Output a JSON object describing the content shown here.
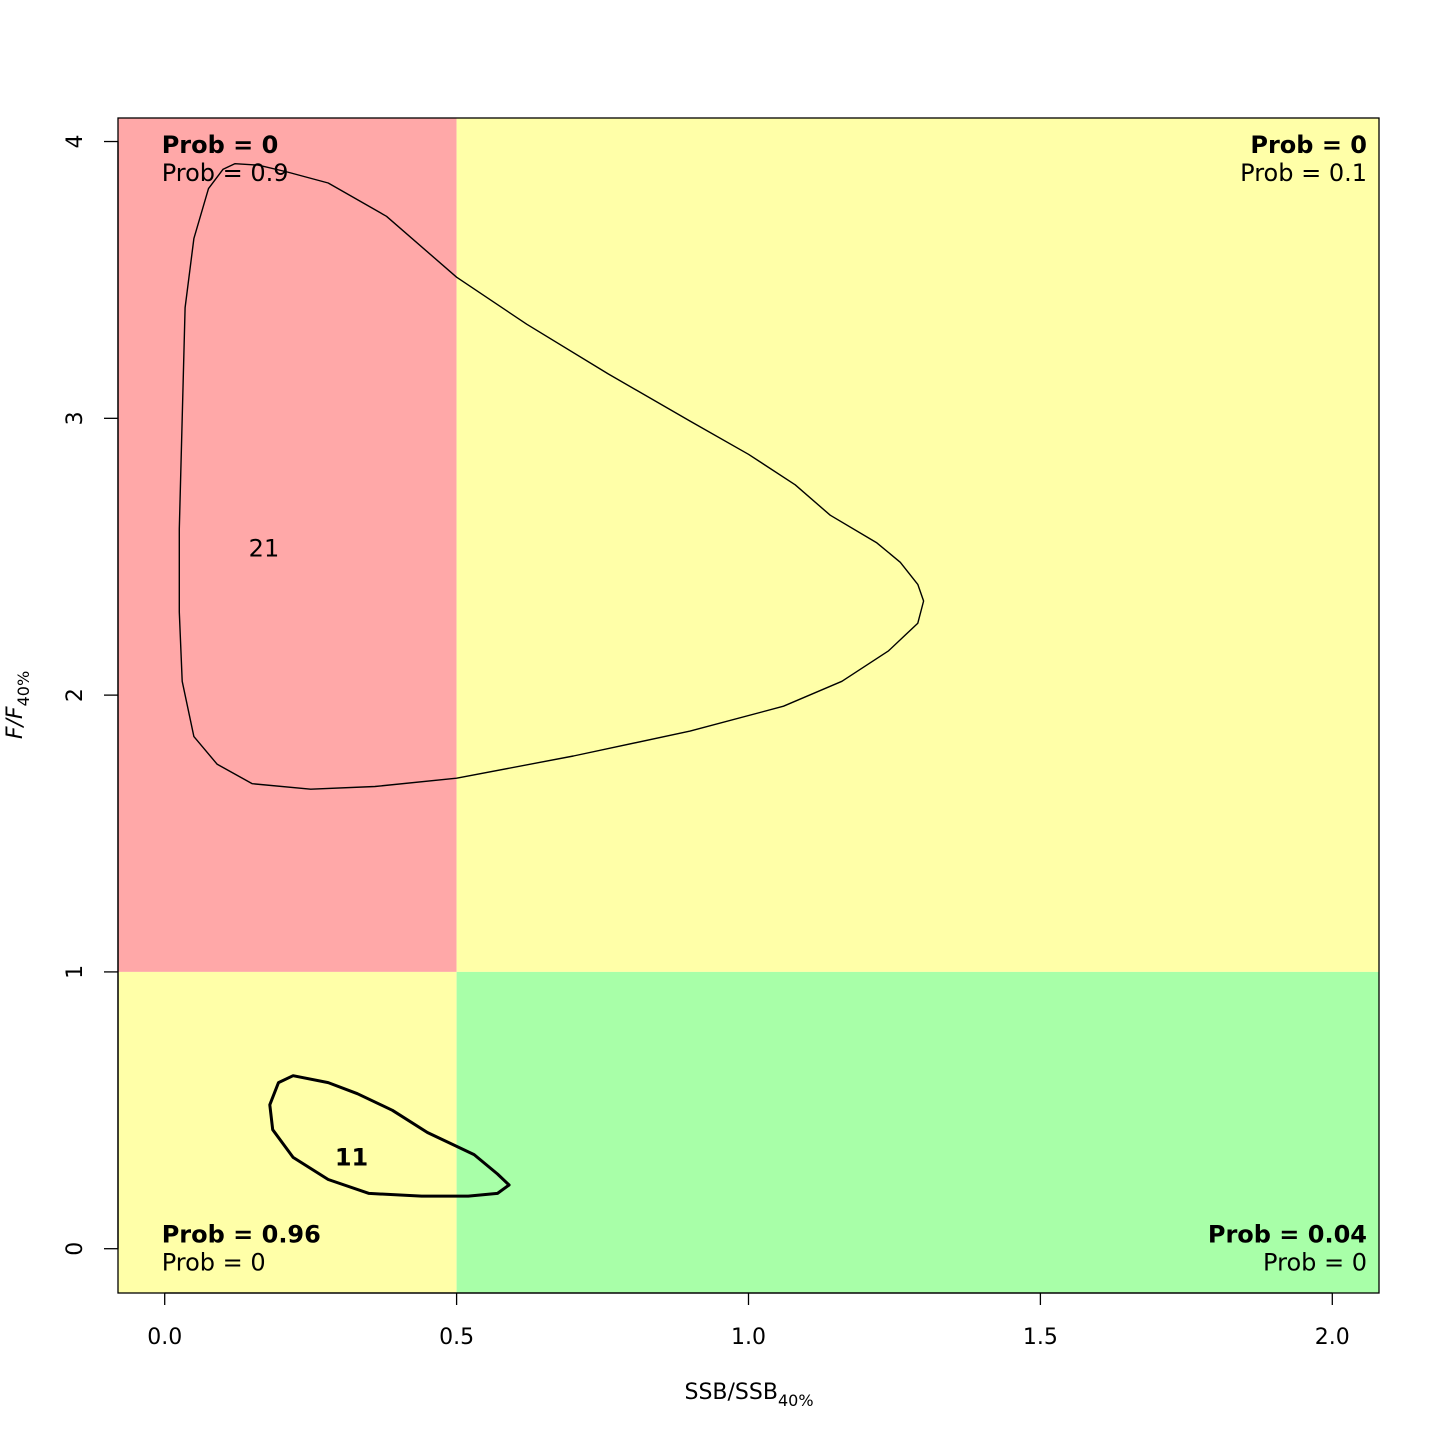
{
  "chart_data": {
    "type": "contour",
    "title": "",
    "xlabel": {
      "main": "SSB/SSB",
      "sub": "40%"
    },
    "ylabel": {
      "main": "F/F",
      "sub": "40%"
    },
    "xlim": [
      -0.08,
      2.08
    ],
    "ylim": [
      -0.16,
      4.085
    ],
    "x_ticks": [
      0,
      0.5,
      1,
      1.5,
      2
    ],
    "x_tick_labels": [
      "0.0",
      "0.5",
      "1.0",
      "1.5",
      "2.0"
    ],
    "y_ticks": [
      0,
      1,
      2,
      3,
      4
    ],
    "y_tick_labels": [
      "0",
      "1",
      "2",
      "3",
      "4"
    ],
    "grid": false,
    "reference_lines": {
      "x": 0.5,
      "y": 1
    },
    "quadrants": [
      {
        "name": "top-left",
        "x": [
          -0.08,
          0.5
        ],
        "y": [
          1,
          4.085
        ],
        "color": "#FFA8A8"
      },
      {
        "name": "top-right",
        "x": [
          0.5,
          2.08
        ],
        "y": [
          1,
          4.085
        ],
        "color": "#FFFFA8"
      },
      {
        "name": "bottom-left",
        "x": [
          -0.08,
          0.5
        ],
        "y": [
          -0.16,
          1
        ],
        "color": "#FFFFA8"
      },
      {
        "name": "bottom-right",
        "x": [
          0.5,
          2.08
        ],
        "y": [
          -0.16,
          1
        ],
        "color": "#A8FFA8"
      }
    ],
    "probability_labels": [
      {
        "quadrant": "top-left",
        "x": 0,
        "y": 3.965,
        "anchor": "start",
        "bold": "Prob = 0",
        "normal": "Prob = 0.9"
      },
      {
        "quadrant": "top-right",
        "x": 2.08,
        "y": 3.965,
        "anchor": "end",
        "bold": "Prob = 0",
        "normal": "Prob = 0.1"
      },
      {
        "quadrant": "bottom-left",
        "x": 0,
        "y": 0.03,
        "anchor": "start",
        "bold": "Prob = 0.96",
        "normal": "Prob = 0"
      },
      {
        "quadrant": "bottom-right",
        "x": 2.08,
        "y": 0.03,
        "anchor": "end",
        "bold": "Prob = 0.04",
        "normal": "Prob = 0"
      }
    ],
    "contours": [
      {
        "label": "21",
        "bold": false,
        "label_pos": [
          0.17,
          2.53
        ],
        "points": [
          [
            0.1,
            3.9
          ],
          [
            0.12,
            3.92
          ],
          [
            0.16,
            3.915
          ],
          [
            0.21,
            3.89
          ],
          [
            0.28,
            3.85
          ],
          [
            0.38,
            3.73
          ],
          [
            0.5,
            3.51
          ],
          [
            0.62,
            3.34
          ],
          [
            0.76,
            3.16
          ],
          [
            0.9,
            2.99
          ],
          [
            1.0,
            2.87
          ],
          [
            1.08,
            2.76
          ],
          [
            1.14,
            2.65
          ],
          [
            1.22,
            2.55
          ],
          [
            1.26,
            2.48
          ],
          [
            1.29,
            2.4
          ],
          [
            1.3,
            2.34
          ],
          [
            1.29,
            2.26
          ],
          [
            1.24,
            2.16
          ],
          [
            1.16,
            2.05
          ],
          [
            1.06,
            1.96
          ],
          [
            0.9,
            1.87
          ],
          [
            0.7,
            1.78
          ],
          [
            0.5,
            1.7
          ],
          [
            0.36,
            1.67
          ],
          [
            0.25,
            1.66
          ],
          [
            0.15,
            1.68
          ],
          [
            0.09,
            1.75
          ],
          [
            0.05,
            1.85
          ],
          [
            0.03,
            2.05
          ],
          [
            0.025,
            2.3
          ],
          [
            0.025,
            2.6
          ],
          [
            0.03,
            3.0
          ],
          [
            0.035,
            3.4
          ],
          [
            0.05,
            3.65
          ],
          [
            0.075,
            3.83
          ],
          [
            0.1,
            3.9
          ]
        ]
      },
      {
        "label": "11",
        "bold": true,
        "label_pos": [
          0.32,
          0.33
        ],
        "points": [
          [
            0.22,
            0.625
          ],
          [
            0.28,
            0.6
          ],
          [
            0.33,
            0.56
          ],
          [
            0.39,
            0.5
          ],
          [
            0.45,
            0.42
          ],
          [
            0.53,
            0.34
          ],
          [
            0.57,
            0.27
          ],
          [
            0.59,
            0.23
          ],
          [
            0.57,
            0.2
          ],
          [
            0.52,
            0.19
          ],
          [
            0.44,
            0.19
          ],
          [
            0.35,
            0.2
          ],
          [
            0.28,
            0.25
          ],
          [
            0.22,
            0.33
          ],
          [
            0.185,
            0.43
          ],
          [
            0.18,
            0.52
          ],
          [
            0.195,
            0.6
          ],
          [
            0.22,
            0.625
          ]
        ]
      }
    ]
  }
}
